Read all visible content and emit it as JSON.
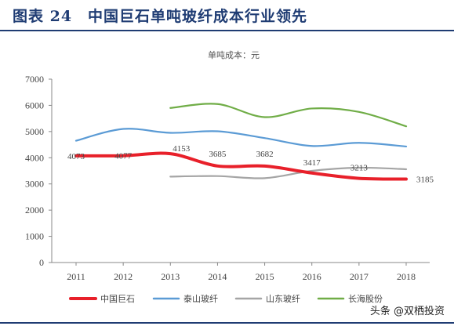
{
  "figure": {
    "title": "图表 24　中国巨石单吨玻纤成本行业领先",
    "watermark": "头条 @双栖投资"
  },
  "colors": {
    "accent": "#1f3c73",
    "series": [
      "#e8202a",
      "#5b9bd5",
      "#a5a5a5",
      "#70ad47"
    ]
  },
  "chart_data": {
    "type": "line",
    "title": "单吨成本：元",
    "xlabel": "",
    "ylabel": "",
    "x": [
      "2011",
      "2012",
      "2013",
      "2014",
      "2015",
      "2016",
      "2017",
      "2018"
    ],
    "ylim": [
      0,
      7000
    ],
    "yticks": [
      0,
      1000,
      2000,
      3000,
      4000,
      5000,
      6000,
      7000
    ],
    "grid": false,
    "legend_position": "bottom",
    "series": [
      {
        "name": "中国巨石",
        "values": [
          4073,
          4077,
          4153,
          3685,
          3682,
          3417,
          3213,
          3185
        ],
        "labels": [
          "4073",
          "4077",
          "4153",
          "3685",
          "3682",
          "3417",
          "3213",
          "3185"
        ]
      },
      {
        "name": "泰山玻纤",
        "values": [
          4650,
          5100,
          4950,
          5010,
          4750,
          4450,
          4570,
          4430
        ]
      },
      {
        "name": "山东玻纤",
        "values": [
          null,
          null,
          3280,
          3300,
          3220,
          3500,
          3620,
          3560
        ]
      },
      {
        "name": "长海股份",
        "values": [
          null,
          null,
          5900,
          6050,
          5550,
          5880,
          5750,
          5200
        ]
      }
    ]
  }
}
